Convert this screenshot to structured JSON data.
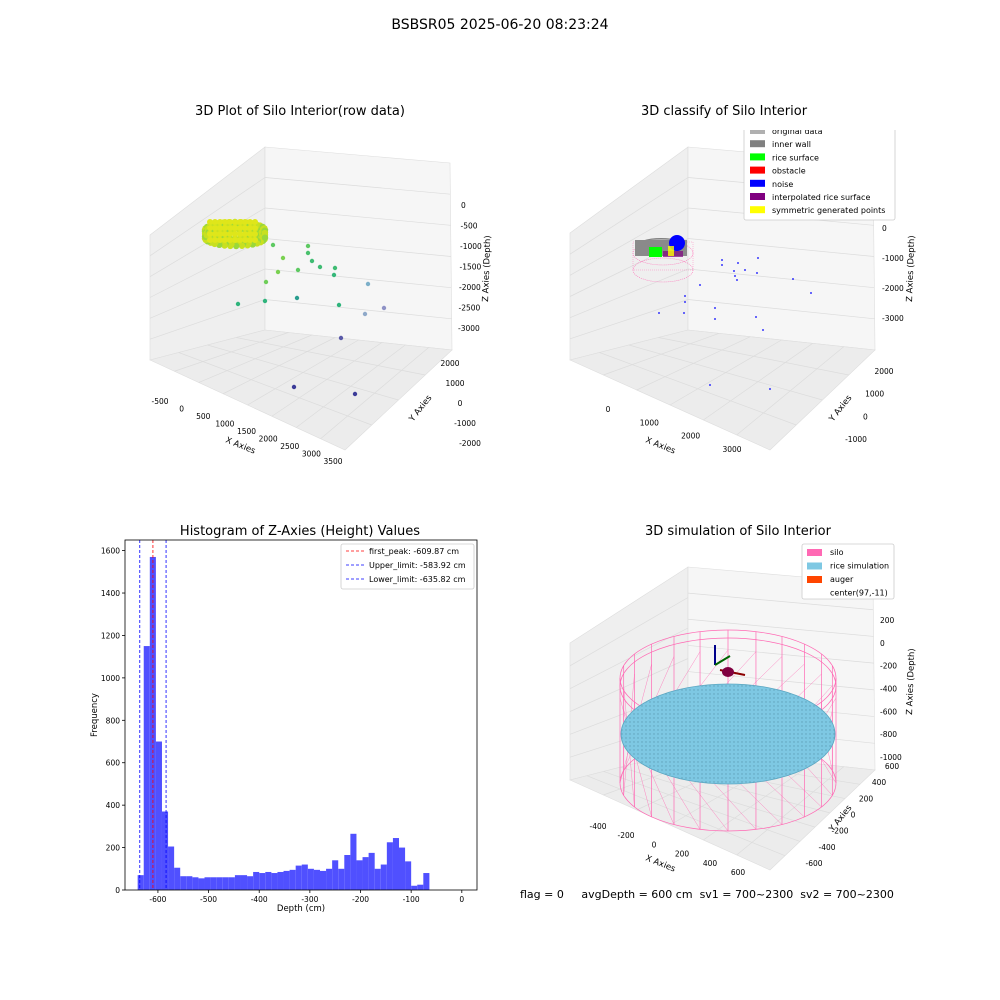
{
  "suptitle": "BSBSR05 2025-06-20 08:23:24",
  "footer": {
    "flag": "flag = 0",
    "avg": "avgDepth = 600 cm",
    "sv1": "sv1 = 700~2300",
    "sv2": "sv2 = 700~2300"
  },
  "colors": {
    "original": "#b0b0b0",
    "inner_wall": "#808080",
    "rice_surface": "#00ff00",
    "obstacle": "#ff0000",
    "noise": "#0000ff",
    "interpolated": "#800080",
    "symmetric": "#ffff00",
    "silo": "#ff69b4",
    "rice_sim": "#7ec8e3",
    "auger": "#ff4500",
    "hist_bar": "#5050ff",
    "peak_line": "#ff0000",
    "limit_line": "#0000ff"
  },
  "chart_data": [
    {
      "type": "scatter3d",
      "title": "3D Plot of Silo Interior(row data)",
      "xlabel": "X Axies",
      "ylabel": "Y Axies",
      "zlabel": "Z Axies (Depth)",
      "xticks": [
        "-500",
        "0",
        "500",
        "1000",
        "1500",
        "2000",
        "2500",
        "3000",
        "3500"
      ],
      "yticks": [
        "-2000",
        "-1000",
        "0",
        "1000",
        "2000"
      ],
      "zticks": [
        "0",
        "-500",
        "-1000",
        "-1500",
        "-2000",
        "-2500",
        "-3000"
      ],
      "colormap": "viridis (by depth)",
      "grid": true
    },
    {
      "type": "scatter3d",
      "title": "3D classify of Silo Interior",
      "xlabel": "X Axies",
      "ylabel": "Y Axies",
      "zlabel": "Z Axies (Depth)",
      "xticks": [
        "0",
        "1000",
        "2000",
        "3000"
      ],
      "yticks": [
        "-1000",
        "0",
        "1000",
        "2000"
      ],
      "zticks": [
        "0",
        "-1000",
        "-2000",
        "-3000"
      ],
      "legend": [
        "original data",
        "inner wall",
        "rice surface",
        "obstacle",
        "noise",
        "interpolated rice surface",
        "symmetric generated points"
      ],
      "legend_placement": "top-right",
      "grid": true
    },
    {
      "type": "bar",
      "title": "Histogram of Z-Axies (Height) Values",
      "xlabel": "Depth (cm)",
      "ylabel": "Frequency",
      "xlim": [
        -665,
        30
      ],
      "ylim": [
        0,
        1650
      ],
      "xticks": [
        -600,
        -500,
        -400,
        -300,
        -200,
        -100,
        0
      ],
      "yticks": [
        0,
        200,
        400,
        600,
        800,
        1000,
        1200,
        1400,
        1600
      ],
      "bin_start": -640,
      "bin_width": 12,
      "values": [
        70,
        1150,
        1570,
        700,
        370,
        205,
        105,
        65,
        65,
        60,
        55,
        60,
        60,
        60,
        60,
        60,
        70,
        70,
        65,
        85,
        80,
        85,
        80,
        85,
        90,
        95,
        115,
        120,
        100,
        95,
        90,
        100,
        140,
        100,
        165,
        265,
        140,
        155,
        175,
        100,
        120,
        225,
        245,
        200,
        135,
        20,
        25,
        80
      ],
      "lines": [
        {
          "label": "first_peak: -609.87 cm",
          "x": -609.87,
          "style": "red-dashed"
        },
        {
          "label": "Upper_limit: -583.92 cm",
          "x": -583.92,
          "style": "blue-dashed"
        },
        {
          "label": "Lower_limit: -635.82 cm",
          "x": -635.82,
          "style": "blue-dashed"
        }
      ],
      "legend_placement": "top-right"
    },
    {
      "type": "surface3d",
      "title": "3D simulation of Silo Interior",
      "xlabel": "X Axies",
      "ylabel": "Y Axies",
      "zlabel": "Z Axies (Depth)",
      "xticks": [
        "-400",
        "-200",
        "0",
        "200",
        "400",
        "600"
      ],
      "yticks": [
        "-600",
        "-400",
        "-200",
        "0",
        "200",
        "400",
        "600"
      ],
      "zticks": [
        "200",
        "0",
        "-200",
        "-400",
        "-600",
        "-800",
        "-1000"
      ],
      "legend": [
        "silo",
        "rice simulation",
        "auger",
        "center(97,-11)"
      ],
      "legend_placement": "top-right",
      "grid": true
    }
  ]
}
